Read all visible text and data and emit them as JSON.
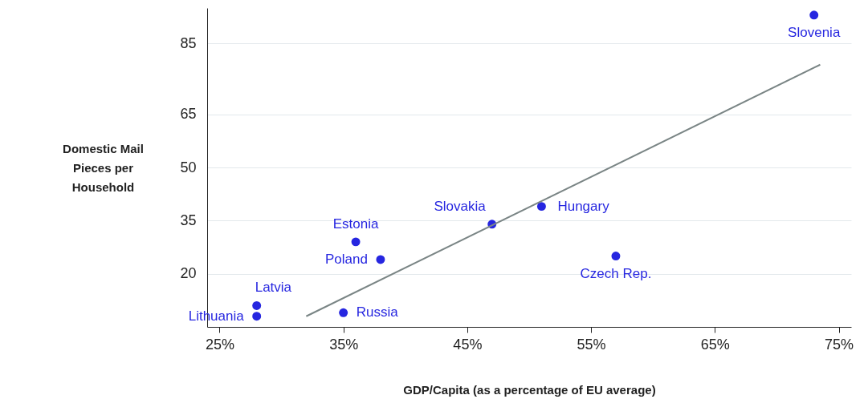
{
  "chart_data": {
    "type": "scatter",
    "xlabel": "GDP/Capita (as a percentage of EU average)",
    "ylabel": "Domestic Mail Pieces per Household",
    "xlim": [
      24,
      76
    ],
    "xticks": [
      {
        "value": 25,
        "label": "25%"
      },
      {
        "value": 35,
        "label": "35%"
      },
      {
        "value": 45,
        "label": "45%"
      },
      {
        "value": 55,
        "label": "55%"
      },
      {
        "value": 65,
        "label": "65%"
      },
      {
        "value": 75,
        "label": "75%"
      }
    ],
    "ylim": [
      5,
      95
    ],
    "yticks": [
      20,
      35,
      50,
      65,
      85
    ],
    "grid": "y",
    "series": [
      {
        "color": "#2626e0",
        "marker": "circle",
        "x": [
          73,
          51,
          47,
          36,
          57,
          38,
          28,
          28,
          35
        ],
        "values": [
          93,
          39,
          34,
          29,
          25,
          24,
          11,
          8,
          9
        ]
      },
      {
        "type": "line",
        "color": "#7a8585",
        "x": [
          32,
          73.5
        ],
        "values": [
          8,
          79
        ]
      }
    ],
    "annotations": [
      {
        "text": "Slovenia",
        "x": 73,
        "y": 93
      },
      {
        "text": "Hungary",
        "x": 51,
        "y": 39
      },
      {
        "text": "Slovakia",
        "x": 47,
        "y": 34
      },
      {
        "text": "Estonia",
        "x": 36,
        "y": 29
      },
      {
        "text": "Czech Rep.",
        "x": 57,
        "y": 25
      },
      {
        "text": "Poland",
        "x": 38,
        "y": 24
      },
      {
        "text": "Latvia",
        "x": 28,
        "y": 11
      },
      {
        "text": "Lithuania",
        "x": 28,
        "y": 8
      },
      {
        "text": "Russia",
        "x": 35,
        "y": 9
      }
    ]
  }
}
